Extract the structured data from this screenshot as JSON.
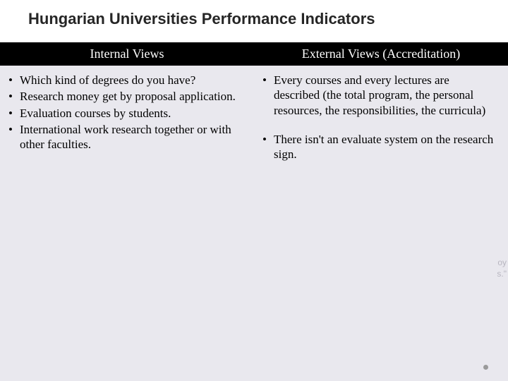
{
  "title": "Hungarian Universities Performance Indicators",
  "columns": {
    "left": {
      "header": "Internal Views",
      "items": [
        "Which kind of degrees do you have?",
        "Research money get by proposal application.",
        "Evaluation courses  by students.",
        "International work research together or with other faculties."
      ]
    },
    "right": {
      "header": "External Views (Accreditation)",
      "items": [
        "Every courses and every lectures are described (the total program, the personal resources, the responsibilities, the curricula)",
        "There isn't an evaluate system on the research sign."
      ]
    }
  },
  "faded": {
    "line1": "oy",
    "line2": "s.\""
  },
  "colors": {
    "header_bg": "#000000",
    "header_text": "#ffffff",
    "body_bg": "#e9e8ee",
    "title_text": "#262626",
    "dot": "#9a9a9a"
  }
}
